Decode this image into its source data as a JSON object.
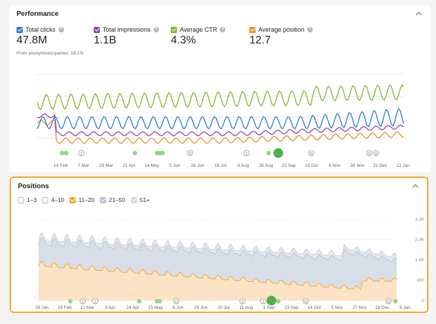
{
  "performance": {
    "title": "Performance",
    "metrics": [
      {
        "label": "Total clicks",
        "value": "47.8M",
        "color": "#2b78d1"
      },
      {
        "label": "Total impressions",
        "value": "1.1B",
        "color": "#8e44ad"
      },
      {
        "label": "Average CTR",
        "value": "4.3%",
        "color": "#7cb82f"
      },
      {
        "label": "Average position",
        "value": "12.7",
        "color": "#f08a24"
      }
    ],
    "anonymized_note": "From anonymized queries: 18.1%",
    "x_ticks": [
      "14 Feb",
      "7 Mar",
      "29 Mar",
      "21 Apr",
      "14 May",
      "5 Jun",
      "26 Jun",
      "19 Jul",
      "8 Aug",
      "30 Aug",
      "22 Sep",
      "15 Oct",
      "6 Nov",
      "28 Nov",
      "21 Dec",
      "13 Jan"
    ],
    "annotation_markers": [
      "2",
      "2",
      "G",
      "2",
      "G",
      "G",
      "G"
    ]
  },
  "positions": {
    "title": "Positions",
    "legend": [
      {
        "label": "1–3",
        "checked": false,
        "color": "#ffffff"
      },
      {
        "label": "4–10",
        "checked": false,
        "color": "#ffffff"
      },
      {
        "label": "11–20",
        "checked": true,
        "color": "#f5a623"
      },
      {
        "label": "21–50",
        "checked": true,
        "color": "#b8c4d4"
      },
      {
        "label": "51+",
        "checked": true,
        "color": "#d9d9d9"
      }
    ],
    "y_ticks": [
      "3.2K",
      "2.4K",
      "1.6K",
      "800",
      "0"
    ],
    "x_ticks": [
      "26 Jan",
      "18 Feb",
      "12 Mar",
      "3 Apr",
      "24 Apr",
      "15 May",
      "6 Jun",
      "29 Jun",
      "20 Jul",
      "11 Aug",
      "1 Sep",
      "23 Sep",
      "14 Oct",
      "5 Nov",
      "27 Nov",
      "18 Dec",
      "9 Jan"
    ],
    "annotation_markers": [
      "2",
      "2",
      "G",
      "2",
      "G",
      "G",
      "G"
    ]
  }
}
